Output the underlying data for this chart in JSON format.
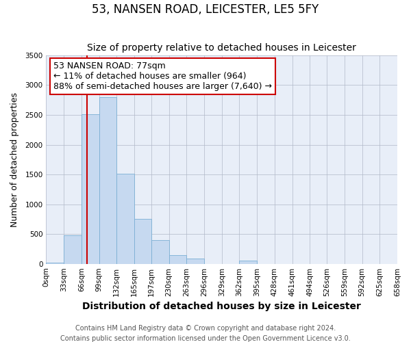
{
  "title": "53, NANSEN ROAD, LEICESTER, LE5 5FY",
  "subtitle": "Size of property relative to detached houses in Leicester",
  "xlabel": "Distribution of detached houses by size in Leicester",
  "ylabel": "Number of detached properties",
  "property_label": "53 NANSEN ROAD: 77sqm",
  "annotation_line1": "← 11% of detached houses are smaller (964)",
  "annotation_line2": "88% of semi-detached houses are larger (7,640) →",
  "bin_edges": [
    0,
    33,
    66,
    99,
    132,
    165,
    197,
    230,
    263,
    296,
    329,
    362,
    395,
    428,
    461,
    494,
    526,
    559,
    592,
    625,
    658
  ],
  "bin_labels": [
    "0sqm",
    "33sqm",
    "66sqm",
    "99sqm",
    "132sqm",
    "165sqm",
    "197sqm",
    "230sqm",
    "263sqm",
    "296sqm",
    "329sqm",
    "362sqm",
    "395sqm",
    "428sqm",
    "461sqm",
    "494sqm",
    "526sqm",
    "559sqm",
    "592sqm",
    "625sqm",
    "658sqm"
  ],
  "counts": [
    25,
    480,
    2510,
    2800,
    1510,
    750,
    400,
    150,
    90,
    0,
    0,
    55,
    0,
    0,
    0,
    0,
    0,
    0,
    0,
    0
  ],
  "bar_color": "#c6d9f0",
  "bar_edge_color": "#7bafd4",
  "vline_x": 77,
  "vline_color": "#cc0000",
  "annotation_box_color": "#cc0000",
  "ylim": [
    0,
    3500
  ],
  "yticks": [
    0,
    500,
    1000,
    1500,
    2000,
    2500,
    3000,
    3500
  ],
  "bg_color": "#e8eef8",
  "footer1": "Contains HM Land Registry data © Crown copyright and database right 2024.",
  "footer2": "Contains public sector information licensed under the Open Government Licence v3.0.",
  "title_fontsize": 12,
  "subtitle_fontsize": 10,
  "xlabel_fontsize": 10,
  "ylabel_fontsize": 9,
  "tick_fontsize": 7.5,
  "annotation_fontsize": 9,
  "footer_fontsize": 7
}
